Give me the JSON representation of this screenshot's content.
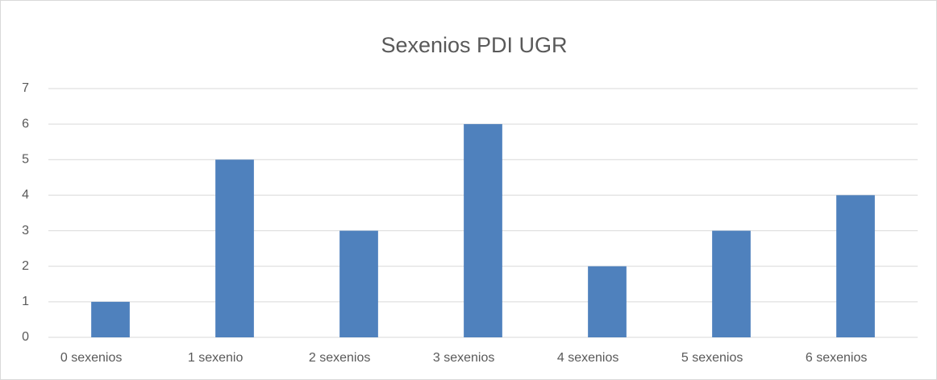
{
  "chart_data": {
    "type": "bar",
    "title": "Sexenios PDI UGR",
    "categories": [
      "0 sexenios",
      "1 sexenio",
      "2 sexenios",
      "3 sexenios",
      "4 sexenios",
      "5 sexenios",
      "6 sexenios"
    ],
    "values": [
      1,
      5,
      3,
      6,
      2,
      3,
      4
    ],
    "color": "#4f81bd",
    "ylim": [
      0,
      7
    ],
    "yticks": [
      0,
      1,
      2,
      3,
      4,
      5,
      6,
      7
    ],
    "grid": true
  }
}
